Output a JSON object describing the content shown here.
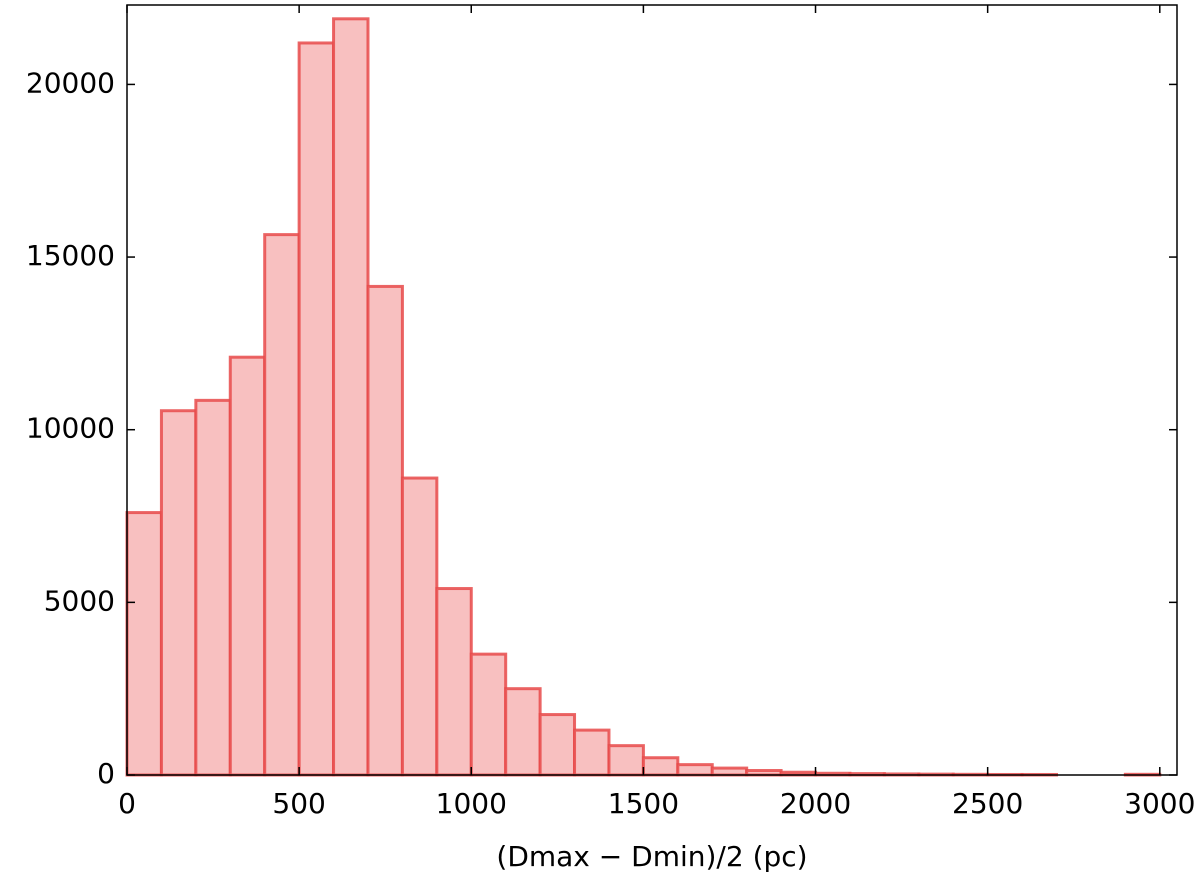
{
  "chart_data": {
    "type": "histogram",
    "xlabel": "(Dmax − Dmin)/2 (pc)",
    "bins": [
      0,
      100,
      200,
      300,
      400,
      500,
      600,
      700,
      800,
      900,
      1000,
      1100,
      1200,
      1300,
      1400,
      1500,
      1600,
      1700,
      1800,
      1900,
      2000,
      2100,
      2200,
      2300,
      2400,
      2500,
      2600,
      2700,
      2800,
      2900,
      3000
    ],
    "values": [
      7600,
      10550,
      10850,
      12100,
      15650,
      21200,
      21900,
      14150,
      8600,
      5400,
      3500,
      2500,
      1750,
      1300,
      850,
      500,
      300,
      200,
      130,
      80,
      50,
      40,
      30,
      25,
      20,
      15,
      15,
      0,
      0,
      20
    ],
    "color": "#f8c0c0",
    "edgecolor": "#e84a4a",
    "xlim": [
      0,
      3050
    ],
    "ylim": [
      0,
      22300
    ],
    "xticks": [
      0,
      500,
      1000,
      1500,
      2000,
      2500,
      3000
    ],
    "yticks": [
      0,
      5000,
      10000,
      15000,
      20000
    ]
  }
}
